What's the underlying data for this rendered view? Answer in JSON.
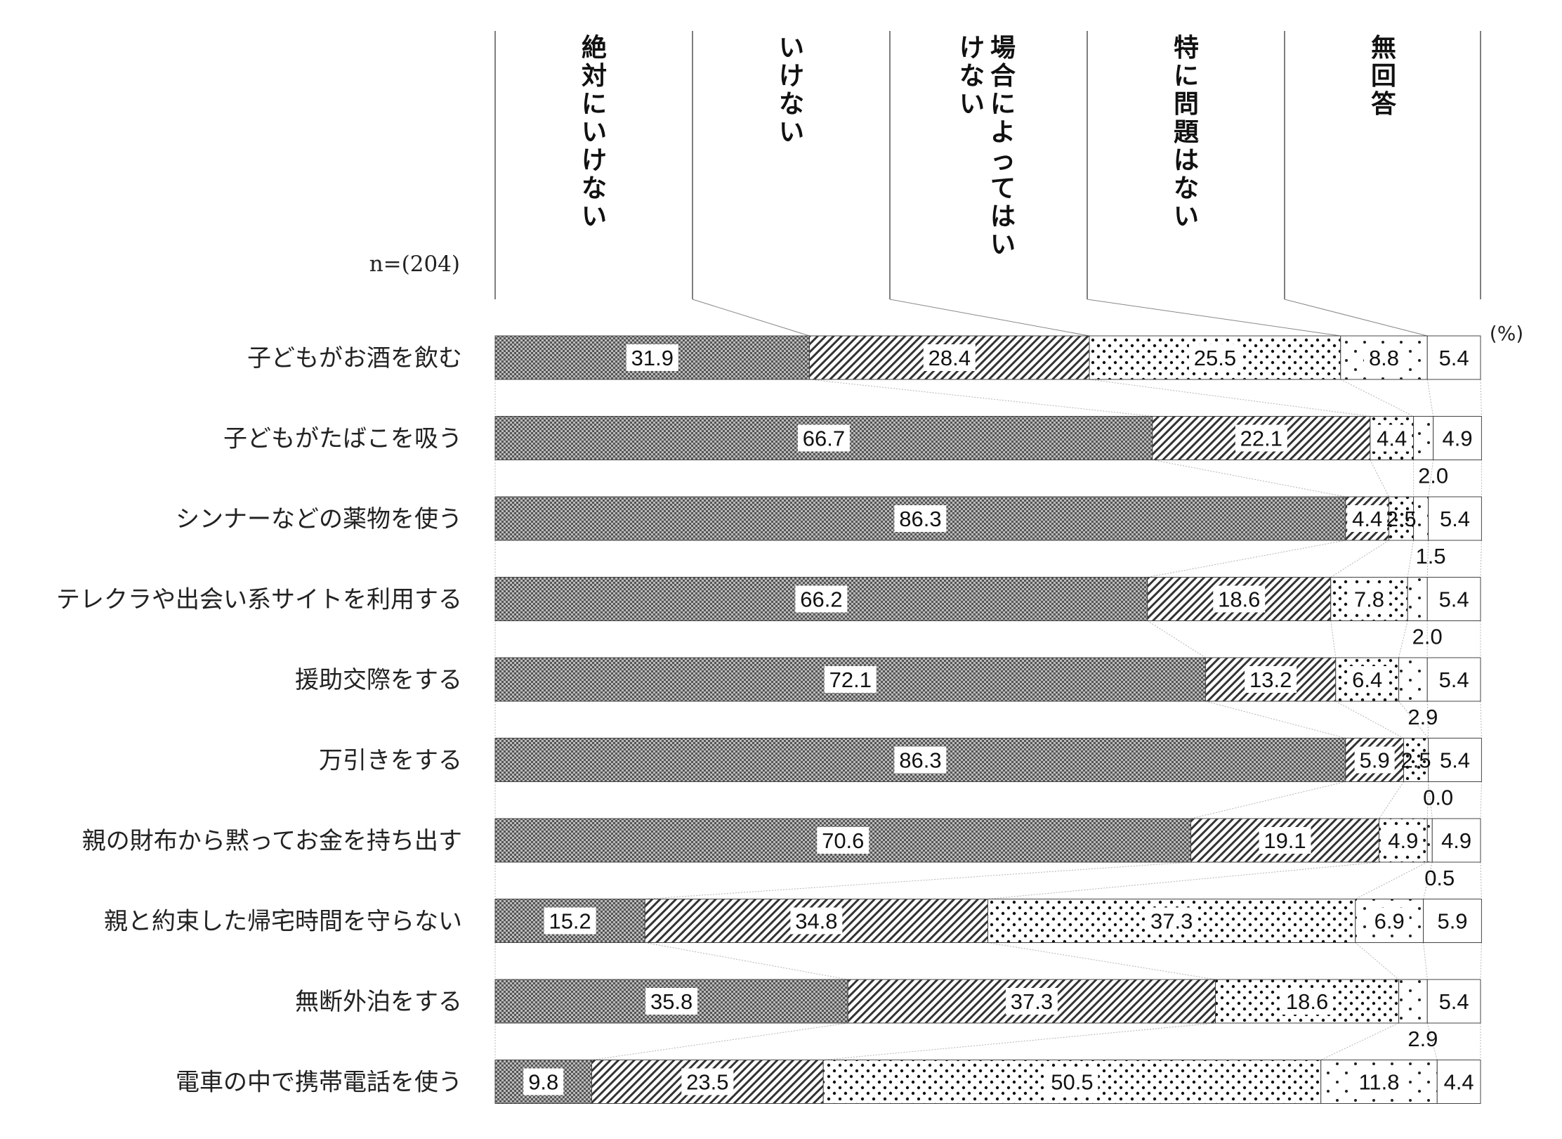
{
  "chart_data": {
    "type": "stacked-bar-horizontal",
    "sample_size": "n=(204)",
    "unit": "(%)",
    "series": [
      {
        "name": "絶対にいけない",
        "pattern": "dense-check"
      },
      {
        "name": "いけない",
        "pattern": "diagonal"
      },
      {
        "name": "場合によってはいけない",
        "pattern": "dots"
      },
      {
        "name": "特に問題はない",
        "pattern": "sparse-dots"
      },
      {
        "name": "無回答",
        "pattern": "none"
      }
    ],
    "categories": [
      "子どもがお酒を飲む",
      "子どもがたばこを吸う",
      "シンナーなどの薬物を使う",
      "テレクラや出会い系サイトを利用する",
      "援助交際をする",
      "万引きをする",
      "親の財布から黙ってお金を持ち出す",
      "親と約束した帰宅時間を守らない",
      "無断外泊をする",
      "電車の中で携帯電話を使う"
    ],
    "values": [
      [
        31.9,
        28.4,
        25.5,
        8.8,
        5.4
      ],
      [
        66.7,
        22.1,
        4.4,
        2.0,
        4.9
      ],
      [
        86.3,
        4.4,
        2.5,
        1.5,
        5.4
      ],
      [
        66.2,
        18.6,
        7.8,
        2.0,
        5.4
      ],
      [
        72.1,
        13.2,
        6.4,
        2.9,
        5.4
      ],
      [
        86.3,
        5.9,
        2.5,
        0.0,
        5.4
      ],
      [
        70.6,
        19.1,
        4.9,
        0.5,
        4.9
      ],
      [
        15.2,
        34.8,
        37.3,
        6.9,
        5.9
      ],
      [
        35.8,
        37.3,
        18.6,
        2.9,
        5.4
      ],
      [
        9.8,
        23.5,
        50.5,
        11.8,
        4.4
      ]
    ],
    "xlim": [
      0,
      100
    ]
  }
}
